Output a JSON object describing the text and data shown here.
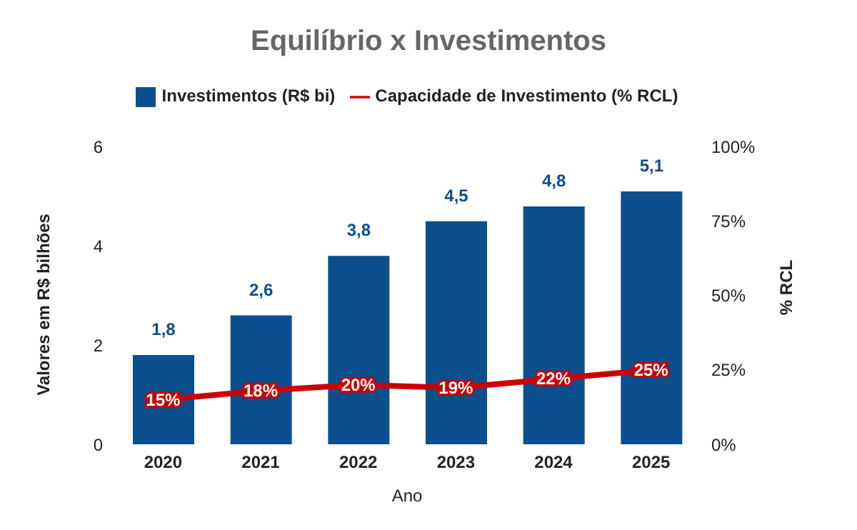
{
  "chart_data": {
    "type": "bar",
    "title": "Equilíbrio x Investimentos",
    "xlabel": "Ano",
    "ylabel": "Valores em R$ bilhões",
    "y2label": "% RCL",
    "categories": [
      "2020",
      "2021",
      "2022",
      "2023",
      "2024",
      "2025"
    ],
    "series": [
      {
        "name": "Investimentos (R$ bi)",
        "color": "#0b4f8f",
        "values": [
          1.8,
          2.6,
          3.8,
          4.5,
          4.8,
          5.1
        ],
        "value_labels": [
          "1,8",
          "2,6",
          "3,8",
          "4,5",
          "4,8",
          "5,1"
        ]
      },
      {
        "name": "Capacidade de Investimento (% RCL)",
        "type": "line",
        "axis": "y2",
        "color": "#cc0000",
        "values": [
          15,
          18,
          20,
          19,
          22,
          25
        ],
        "value_labels": [
          "15%",
          "18%",
          "20%",
          "19%",
          "22%",
          "25%"
        ]
      }
    ],
    "ylim": [
      0,
      6
    ],
    "yticks": [
      0,
      2,
      4,
      6
    ],
    "y2lim": [
      0,
      100
    ],
    "y2ticks": [
      {
        "value": 0,
        "label": "0%"
      },
      {
        "value": 25,
        "label": "25%"
      },
      {
        "value": 50,
        "label": "50%"
      },
      {
        "value": 75,
        "label": "75%"
      },
      {
        "value": 100,
        "label": "100%"
      }
    ],
    "legend": "top"
  }
}
